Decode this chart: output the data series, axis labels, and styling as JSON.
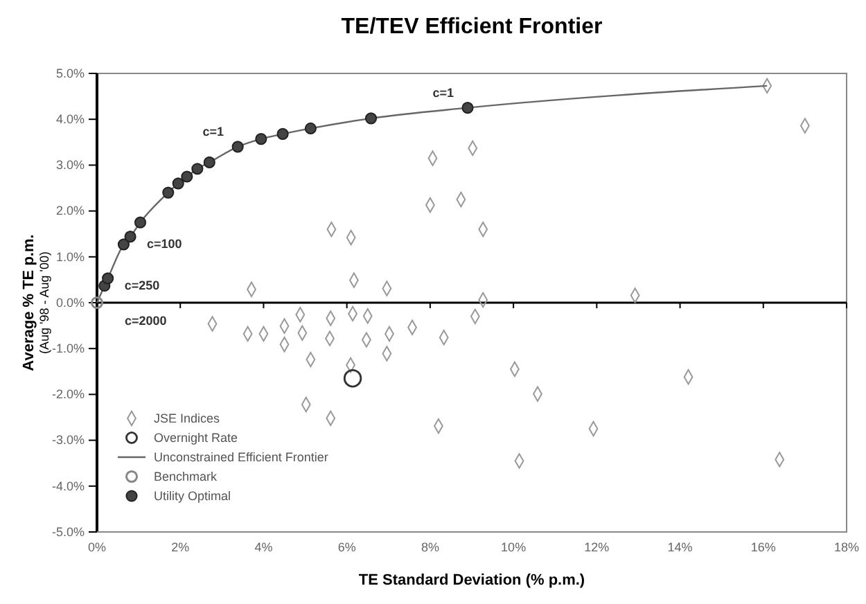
{
  "chart_data": {
    "type": "scatter",
    "title": "TE/TEV Efficient Frontier",
    "xlabel": "TE Standard Deviation (% p.m.)",
    "ylabel": "Average % TE p.m.\n(Aug '98 - Aug '00)",
    "xlim": [
      0,
      18
    ],
    "xticks": [
      {
        "value": 0,
        "label": "0%"
      },
      {
        "value": 2,
        "label": "2%"
      },
      {
        "value": 4,
        "label": "4%"
      },
      {
        "value": 6,
        "label": "6%"
      },
      {
        "value": 8,
        "label": "8%"
      },
      {
        "value": 10,
        "label": "10%"
      },
      {
        "value": 12,
        "label": "12%"
      },
      {
        "value": 14,
        "label": "14%"
      },
      {
        "value": 16,
        "label": "16%"
      },
      {
        "value": 18,
        "label": "18%"
      }
    ],
    "ylim": [
      -5,
      5
    ],
    "yticks": [
      {
        "value": 5,
        "label": "5.0%"
      },
      {
        "value": 4,
        "label": "4.0%"
      },
      {
        "value": 3,
        "label": "3.0%"
      },
      {
        "value": 2,
        "label": "2.0%"
      },
      {
        "value": 1,
        "label": "1.0%"
      },
      {
        "value": 0,
        "label": "0.0%"
      },
      {
        "value": -1,
        "label": "-1.0%"
      },
      {
        "value": -2,
        "label": "-2.0%"
      },
      {
        "value": -3,
        "label": "-3.0%"
      },
      {
        "value": -4,
        "label": "-4.0%"
      },
      {
        "value": -5,
        "label": "-5.0%"
      }
    ],
    "legend": "bottom left",
    "series": [
      {
        "name": "JSE Indices",
        "type": "scatter",
        "marker": "diamond",
        "color": "#999999",
        "x": [
          17.0,
          8.06,
          9.02,
          8.0,
          8.74,
          9.27,
          9.27,
          12.92,
          9.08,
          8.33,
          5.63,
          6.1,
          6.17,
          6.96,
          3.71,
          2.77,
          3.62,
          4.0,
          4.5,
          4.88,
          4.5,
          4.93,
          5.61,
          5.59,
          6.14,
          6.5,
          6.47,
          7.02,
          7.57,
          6.96,
          5.13,
          6.09,
          5.02,
          5.61,
          8.2,
          10.03,
          10.58,
          14.2,
          11.92,
          10.14,
          16.39,
          16.09
        ],
        "values": [
          3.86,
          3.15,
          3.37,
          2.13,
          2.25,
          1.6,
          0.06,
          0.16,
          -0.3,
          -0.76,
          1.6,
          1.42,
          0.49,
          0.31,
          0.29,
          -0.46,
          -0.68,
          -0.68,
          -0.51,
          -0.26,
          -0.91,
          -0.66,
          -0.34,
          -0.78,
          -0.24,
          -0.29,
          -0.81,
          -0.68,
          -0.54,
          -1.11,
          -1.24,
          -1.36,
          -2.22,
          -2.52,
          -2.69,
          -1.45,
          -1.99,
          -1.62,
          -2.75,
          -3.45,
          -3.42,
          4.73
        ]
      },
      {
        "name": "Overnight Rate",
        "type": "scatter",
        "marker": "circle",
        "color": "#333333",
        "x": [
          6.14
        ],
        "values": [
          -1.65
        ]
      },
      {
        "name": "Unconstrained Efficient Frontier",
        "type": "line",
        "marker": "none",
        "line_style": "solid",
        "color": "#666666",
        "x": [
          0,
          0.18,
          0.26,
          0.64,
          0.8,
          1.04,
          1.71,
          1.95,
          2.16,
          2.41,
          2.7,
          3.38,
          3.94,
          4.46,
          5.13,
          6.58,
          8.9,
          16.09
        ],
        "values": [
          0,
          0.37,
          0.53,
          1.27,
          1.44,
          1.75,
          2.4,
          2.6,
          2.75,
          2.92,
          3.06,
          3.4,
          3.57,
          3.68,
          3.8,
          4.02,
          4.25,
          4.73
        ]
      },
      {
        "name": "Benchmark",
        "type": "scatter",
        "marker": "circle",
        "color": "#888888",
        "x": [
          0
        ],
        "values": [
          0
        ]
      },
      {
        "name": "Utility Optimal",
        "type": "scatter",
        "marker": "circle",
        "color": "#444444",
        "x": [
          0.18,
          0.26,
          0.64,
          0.8,
          1.04,
          1.71,
          1.95,
          2.16,
          2.41,
          2.7,
          3.38,
          3.94,
          4.46,
          5.13,
          6.58,
          8.9
        ],
        "values": [
          0.37,
          0.53,
          1.27,
          1.44,
          1.75,
          2.4,
          2.6,
          2.75,
          2.92,
          3.06,
          3.4,
          3.57,
          3.68,
          3.8,
          4.02,
          4.25
        ]
      }
    ],
    "annotations": [
      {
        "text": "c=1",
        "x": 3.38,
        "y": 3.4
      },
      {
        "text": "c=1",
        "x": 8.9,
        "y": 4.25
      },
      {
        "text": "c=100",
        "x": 0.8,
        "y": 1.44
      },
      {
        "text": "c=250",
        "x": 0.26,
        "y": 0.53
      },
      {
        "text": "c=2000",
        "x": 0,
        "y": 0
      }
    ]
  }
}
